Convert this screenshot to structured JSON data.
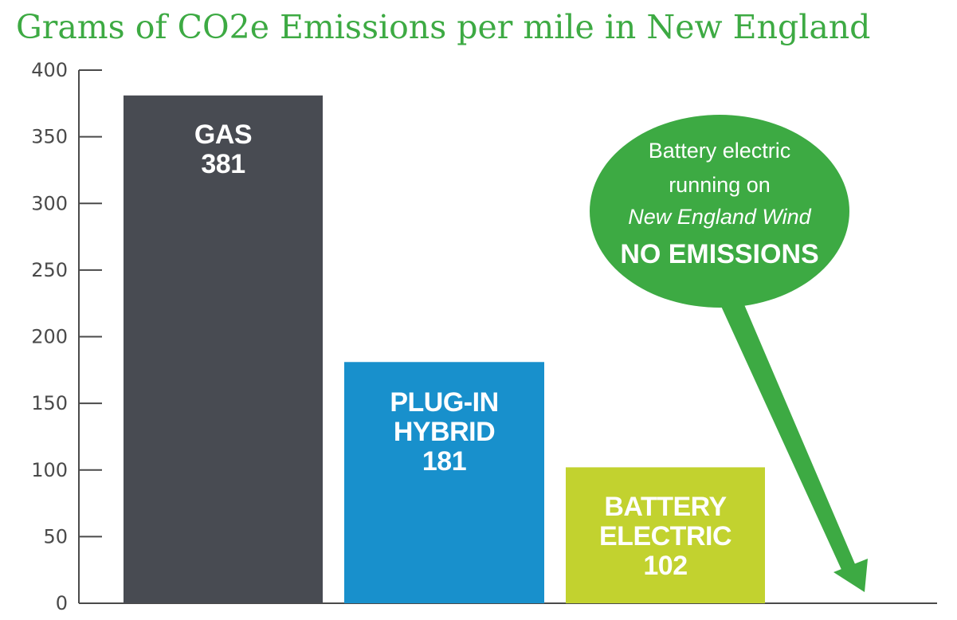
{
  "chart_data": {
    "type": "bar",
    "title": "Grams of CO2e Emissions per mile in New England",
    "xlabel": "",
    "ylabel": "",
    "ylim": [
      0,
      400
    ],
    "yticks": [
      0,
      50,
      100,
      150,
      200,
      250,
      300,
      350,
      400
    ],
    "grid": false,
    "categories": [
      "GAS",
      "PLUG-IN HYBRID",
      "BATTERY ELECTRIC"
    ],
    "values": [
      381,
      181,
      102
    ],
    "bars": [
      {
        "label_lines": [
          "GAS",
          "381"
        ],
        "value": 381,
        "color": "#484b52"
      },
      {
        "label_lines": [
          "PLUG-IN",
          "HYBRID",
          "181"
        ],
        "value": 181,
        "color": "#1890cc"
      },
      {
        "label_lines": [
          "BATTERY",
          "ELECTRIC",
          "102"
        ],
        "value": 102,
        "color": "#c2d22f"
      }
    ],
    "callout": {
      "lines": [
        {
          "text": "Battery electric",
          "style": "normal"
        },
        {
          "text": "running on",
          "style": "normal"
        },
        {
          "text": "New England Wind",
          "style": "italic"
        },
        {
          "text": "NO EMISSIONS",
          "style": "bold"
        }
      ],
      "points_to_value": 0,
      "color": "#3daa43"
    },
    "colors": {
      "title": "#3daa43",
      "axis": "#4a4a4a",
      "callout": "#3daa43"
    }
  }
}
